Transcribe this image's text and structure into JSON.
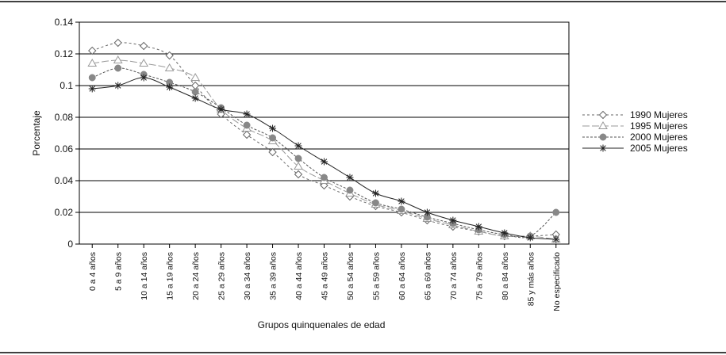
{
  "chart_data": {
    "type": "line",
    "xlabel": "Grupos quinquenales de edad",
    "ylabel": "Porcentaje",
    "ylim": [
      0,
      0.14
    ],
    "yticks": [
      "0",
      "0.02",
      "0.04",
      "0.06",
      "0.08",
      "0.1",
      "0.12",
      "0.14"
    ],
    "grid": "horizontal",
    "legend_position": "right",
    "categories": [
      "0 a 4 años",
      "5 a 9 años",
      "10 a 14 años",
      "15 a 19 años",
      "20 a 24 años",
      "25 a 29 años",
      "30 a 34 años",
      "35 a 39 años",
      "40 a 44 años",
      "45 a 49 años",
      "50 a 54 años",
      "55 a 59 años",
      "60 a 64 años",
      "65 a 69 años",
      "70 a 74 años",
      "75 a 79 años",
      "80 a 84 años",
      "85 y más años",
      "No especificado"
    ],
    "series": [
      {
        "name": "1990 Mujeres",
        "marker": "diamond",
        "color": "#666666",
        "dash": "3,3",
        "values": [
          0.122,
          0.127,
          0.125,
          0.119,
          0.1,
          0.082,
          0.069,
          0.058,
          0.044,
          0.037,
          0.03,
          0.024,
          0.02,
          0.015,
          0.011,
          0.008,
          0.005,
          0.005,
          0.006
        ]
      },
      {
        "name": "1995 Mujeres",
        "marker": "triangle",
        "color": "#999999",
        "dash": "9,3",
        "values": [
          0.114,
          0.116,
          0.114,
          0.111,
          0.105,
          0.085,
          0.073,
          0.065,
          0.049,
          0.04,
          0.032,
          0.025,
          0.021,
          0.016,
          0.012,
          0.008,
          0.005,
          0.005,
          0.003
        ]
      },
      {
        "name": "2000 Mujeres",
        "marker": "circle",
        "color": "#555555",
        "dash": "3,2",
        "values": [
          0.105,
          0.111,
          0.107,
          0.102,
          0.096,
          0.086,
          0.075,
          0.067,
          0.054,
          0.042,
          0.034,
          0.026,
          0.022,
          0.017,
          0.013,
          0.009,
          0.006,
          0.005,
          0.02
        ]
      },
      {
        "name": "2005 Mujeres",
        "marker": "star",
        "color": "#222222",
        "dash": "",
        "values": [
          0.098,
          0.1,
          0.105,
          0.099,
          0.092,
          0.085,
          0.082,
          0.073,
          0.062,
          0.052,
          0.042,
          0.032,
          0.027,
          0.02,
          0.015,
          0.011,
          0.007,
          0.004,
          0.003
        ]
      }
    ]
  }
}
